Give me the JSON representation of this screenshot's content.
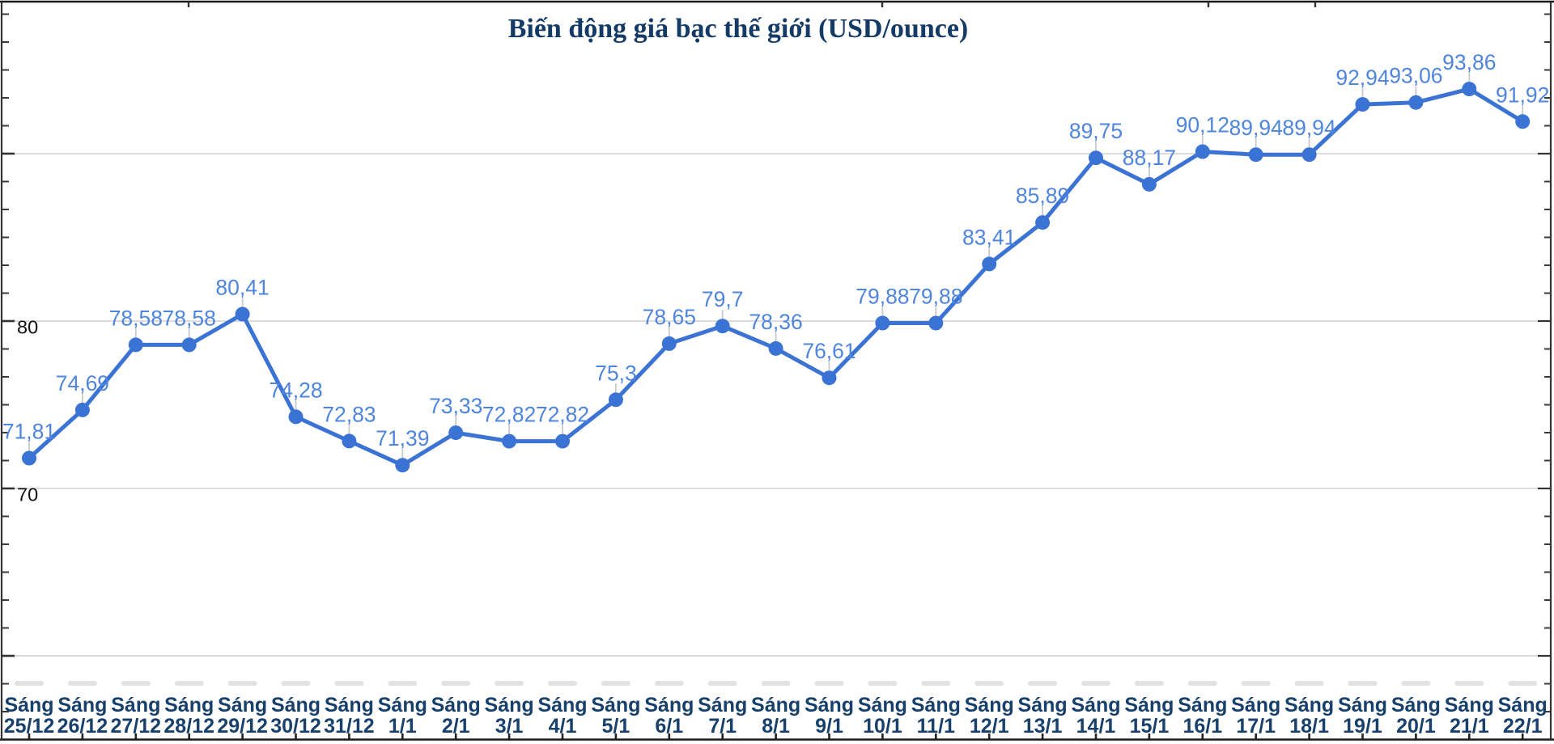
{
  "chart_data": {
    "type": "line",
    "title": "Biến động giá bạc thế giới (USD/ounce)",
    "x_label_prefix": "Sáng",
    "categories": [
      "25/12",
      "26/12",
      "27/12",
      "28/12",
      "29/12",
      "30/12",
      "31/12",
      "1/1",
      "2/1",
      "3/1",
      "4/1",
      "5/1",
      "6/1",
      "7/1",
      "8/1",
      "9/1",
      "10/1",
      "11/1",
      "12/1",
      "13/1",
      "14/1",
      "15/1",
      "16/1",
      "17/1",
      "18/1",
      "19/1",
      "20/1",
      "21/1",
      "22/1"
    ],
    "values": [
      71.81,
      74.69,
      78.58,
      78.58,
      80.41,
      74.28,
      72.83,
      71.39,
      73.33,
      72.82,
      72.82,
      75.3,
      78.65,
      79.7,
      78.36,
      76.61,
      79.88,
      79.88,
      83.41,
      85.89,
      89.75,
      88.17,
      90.12,
      89.94,
      89.94,
      92.94,
      93.06,
      93.86,
      91.92
    ],
    "point_labels": [
      "71,81",
      "74,69",
      "78,58",
      "78,58",
      "80,41",
      "74,28",
      "72,83",
      "71,39",
      "73,33",
      "72,82",
      "72,82",
      "75,3",
      "78,65",
      "79,7",
      "78,36",
      "76,61",
      "79,88",
      "79,88",
      "83,41",
      "85,89",
      "89,75",
      "88,17",
      "90,12",
      "89,94",
      "89,94",
      "92,94",
      "93,06",
      "93,86",
      "91,92"
    ],
    "y_axis": {
      "labeled_ticks": [
        {
          "value": 80,
          "label": "80"
        },
        {
          "value": 70,
          "label": "70"
        }
      ],
      "gridline_values": [
        90,
        80,
        70,
        60
      ],
      "ylim": [
        55,
        99
      ]
    },
    "legend": null,
    "grid": "horizontal-only",
    "colors": {
      "line": "#3a73d4",
      "point": "#3a73d4",
      "point_label": "#4f85dd",
      "category_label": "#17406b",
      "title": "#143a66",
      "gridline": "#d7d7d7",
      "axis": "#333333",
      "frame": "#1a1a1a",
      "leader_line": "#c9c9c9",
      "y_label": "#111111",
      "ghost_dash": "#e2e2e2"
    }
  }
}
